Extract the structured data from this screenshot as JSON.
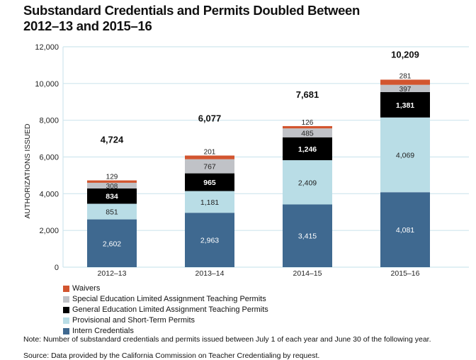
{
  "title": "Substandard Credentials and Permits Doubled Between 2012–13 and 2015–16",
  "title_lines": [
    "Substandard Credentials and Permits Doubled Between",
    "2012–13 and 2015–16"
  ],
  "note": "Note: Number of substandard credentials and permits issued between July 1 of each year and June 30 of the following year.",
  "source": "Source: Data provided by the California Commission on Teacher Credentialing by request.",
  "chart_data": {
    "type": "bar",
    "stacked": true,
    "ylabel": "AUTHORIZATIONS ISSUED",
    "xlabel": "",
    "ylim": [
      0,
      12000
    ],
    "yticks": [
      "0",
      "2,000",
      "4,000",
      "6,000",
      "8,000",
      "10,000",
      "12,000"
    ],
    "ytick_values": [
      0,
      2000,
      4000,
      6000,
      8000,
      10000,
      12000
    ],
    "grid": true,
    "legend_position": "bottom-left",
    "categories": [
      "2012–13",
      "2013–14",
      "2014–15",
      "2015–16"
    ],
    "totals": [
      "4,724",
      "6,077",
      "7,681",
      "10,209"
    ],
    "series": [
      {
        "name": "Intern Credentials",
        "color": "#3f6990",
        "label_color": "#ffffff",
        "values": [
          2602,
          2963,
          3415,
          4081
        ],
        "labels": [
          "2,602",
          "2,963",
          "3,415",
          "4,081"
        ]
      },
      {
        "name": "Provisional and Short-Term Permits",
        "color": "#b9dde6",
        "label_color": "#222222",
        "values": [
          851,
          1181,
          2409,
          4069
        ],
        "labels": [
          "851",
          "1,181",
          "2,409",
          "4,069"
        ]
      },
      {
        "name": "General Education Limited Assignment Teaching Permits",
        "color": "#000000",
        "label_color": "#ffffff",
        "values": [
          834,
          965,
          1246,
          1381
        ],
        "labels": [
          "834",
          "965",
          "1,246",
          "1,381"
        ]
      },
      {
        "name": "Special Education Limited Assignment Teaching Permits",
        "color": "#c0c2c7",
        "label_color": "#222222",
        "values": [
          308,
          767,
          485,
          397
        ],
        "labels": [
          "308",
          "767",
          "485",
          "397"
        ]
      },
      {
        "name": "Waivers",
        "color": "#d2552f",
        "label_color": "#222222",
        "values": [
          129,
          201,
          126,
          281
        ],
        "labels": [
          "129",
          "201",
          "126",
          "281"
        ]
      }
    ]
  }
}
